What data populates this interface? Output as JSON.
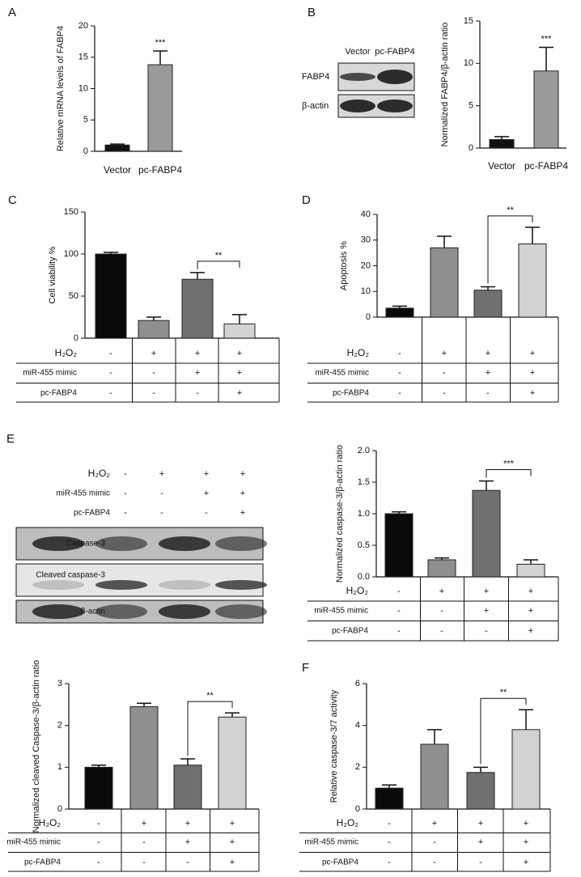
{
  "chart_data": [
    {
      "type": "bar",
      "panel": "A",
      "ylabel": "Relative mRNA levels of FABP4",
      "categories": [
        "Vector",
        "pc-FABP4"
      ],
      "values": [
        1,
        13.8
      ],
      "errors": [
        0.15,
        2.2
      ],
      "colors": [
        "#111111",
        "#9a9a9a"
      ],
      "ylim": [
        0,
        20
      ],
      "yticks": [
        0,
        5,
        10,
        15,
        20
      ],
      "annotation": "***"
    },
    {
      "type": "bar",
      "ylabel": "Normalized FABP4/β-actin ratio",
      "categories": [
        "Vector",
        "pc-FABP4"
      ],
      "values": [
        1,
        9.1
      ],
      "errors": [
        0.35,
        2.8
      ],
      "colors": [
        "#111111",
        "#9a9a9a"
      ],
      "ylim": [
        0,
        15
      ],
      "yticks": [
        0,
        5,
        10,
        15
      ],
      "annotation": "***"
    },
    {
      "type": "bar",
      "panel": "C",
      "ylabel": "Cell viability %",
      "values": [
        100,
        21,
        70,
        17
      ],
      "errors": [
        2,
        4,
        8,
        11
      ],
      "colors": [
        "#0a0a0a",
        "#8f8f8f",
        "#707070",
        "#d2d2d2"
      ],
      "ylim": [
        0,
        150
      ],
      "yticks": [
        0,
        50,
        100,
        150
      ],
      "annotation": "**",
      "table": [
        {
          "label": "H₂O₂",
          "values": [
            "-",
            "+",
            "+",
            "+"
          ]
        },
        {
          "label": "miR-455 mimic",
          "values": [
            "-",
            "-",
            "+",
            "+"
          ]
        },
        {
          "label": "pc-FABP4",
          "values": [
            "-",
            "-",
            "-",
            "+"
          ]
        }
      ]
    },
    {
      "type": "bar",
      "panel": "D",
      "ylabel": "Apoptosis %",
      "values": [
        3.5,
        27,
        10.5,
        28.5
      ],
      "errors": [
        0.8,
        4.5,
        1.3,
        6.5
      ],
      "colors": [
        "#0a0a0a",
        "#8f8f8f",
        "#707070",
        "#d2d2d2"
      ],
      "ylim": [
        0,
        40
      ],
      "yticks": [
        0,
        10,
        20,
        30,
        40
      ],
      "annotation": "**",
      "table": [
        {
          "label": "H₂O₂",
          "values": [
            "-",
            "+",
            "+",
            "+"
          ]
        },
        {
          "label": "miR-455 mimic",
          "values": [
            "-",
            "-",
            "+",
            "+"
          ]
        },
        {
          "label": "pc-FABP4",
          "values": [
            "-",
            "-",
            "-",
            "+"
          ]
        }
      ]
    },
    {
      "type": "bar",
      "ylabel": "Normalized caspase-3/β-actin ratio",
      "values": [
        1.0,
        0.27,
        1.37,
        0.2
      ],
      "errors": [
        0.03,
        0.03,
        0.15,
        0.07
      ],
      "colors": [
        "#0a0a0a",
        "#8f8f8f",
        "#707070",
        "#d2d2d2"
      ],
      "ylim": [
        0,
        2
      ],
      "yticks": [
        {
          "value": 0,
          "label": "0.0"
        },
        0.5,
        {
          "value": 1,
          "label": "1.0"
        },
        1.5,
        {
          "value": 2,
          "label": "2.0"
        }
      ],
      "annotation": "***",
      "table": [
        {
          "label": "H₂O₂",
          "values": [
            "-",
            "+",
            "+",
            "+"
          ]
        },
        {
          "label": "miR-455 mimic",
          "values": [
            "-",
            "-",
            "+",
            "+"
          ]
        },
        {
          "label": "pc-FABP4",
          "values": [
            "-",
            "-",
            "-",
            "+"
          ]
        }
      ]
    },
    {
      "type": "bar",
      "ylabel": "Normalized cleaved Caspase-3/β-actin ratio",
      "values": [
        1.0,
        2.45,
        1.05,
        2.2
      ],
      "errors": [
        0.05,
        0.08,
        0.15,
        0.1
      ],
      "colors": [
        "#0a0a0a",
        "#8f8f8f",
        "#707070",
        "#d2d2d2"
      ],
      "ylim": [
        0,
        3
      ],
      "yticks": [
        0,
        1,
        2,
        3
      ],
      "annotation": "**",
      "table": [
        {
          "label": "H₂O₂",
          "values": [
            "-",
            "+",
            "+",
            "+"
          ]
        },
        {
          "label": "miR-455 mimic",
          "values": [
            "-",
            "-",
            "+",
            "+"
          ]
        },
        {
          "label": "pc-FABP4",
          "values": [
            "-",
            "-",
            "-",
            "+"
          ]
        }
      ]
    },
    {
      "type": "bar",
      "panel": "F",
      "ylabel": "Relative caspase-3/7 activity",
      "values": [
        1.0,
        3.1,
        1.75,
        3.8
      ],
      "errors": [
        0.15,
        0.7,
        0.25,
        0.95
      ],
      "colors": [
        "#0a0a0a",
        "#8f8f8f",
        "#707070",
        "#d2d2d2"
      ],
      "ylim": [
        0,
        6
      ],
      "yticks": [
        0,
        2,
        4,
        6
      ],
      "annotation": "**",
      "table": [
        {
          "label": "H₂O₂",
          "values": [
            "-",
            "+",
            "+",
            "+"
          ]
        },
        {
          "label": "miR-455 mimic",
          "values": [
            "-",
            "-",
            "+",
            "+"
          ]
        },
        {
          "label": "pc-FABP4",
          "values": [
            "-",
            "-",
            "-",
            "+"
          ]
        }
      ]
    }
  ],
  "blots": [
    {
      "panel": "B",
      "lanes": [
        "Vector",
        "pc-FABP4"
      ],
      "rows": [
        "FABP4",
        "β-actin"
      ]
    },
    {
      "panel": "E",
      "conditions": [
        {
          "label": "H₂O₂",
          "values": [
            "-",
            "+",
            "+",
            "+"
          ]
        },
        {
          "label": "miR-455 mimic",
          "values": [
            "-",
            "-",
            "+",
            "+"
          ]
        },
        {
          "label": "pc-FABP4",
          "values": [
            "-",
            "-",
            "-",
            "+"
          ]
        }
      ],
      "rows": [
        "Caspase-3",
        "Cleaved caspase-3",
        "β-actin"
      ]
    }
  ]
}
